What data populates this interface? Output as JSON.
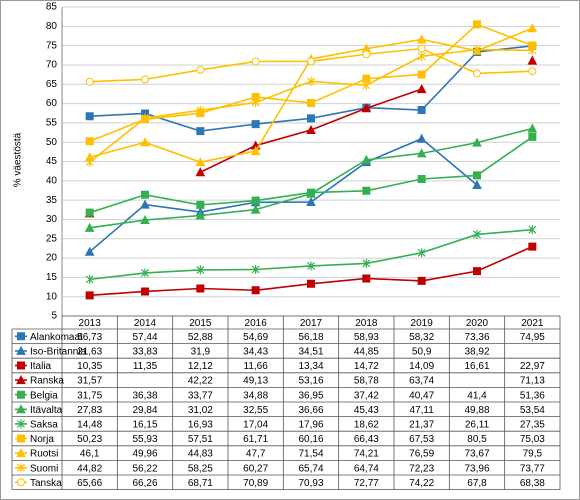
{
  "chart_data": {
    "type": "line",
    "y_label": "% väestöstä",
    "categories": [
      "2013",
      "2014",
      "2015",
      "2016",
      "2017",
      "2018",
      "2019",
      "2020",
      "2021"
    ],
    "ylim": [
      5,
      85
    ],
    "yticks": [
      5,
      10,
      15,
      20,
      25,
      30,
      35,
      40,
      45,
      50,
      55,
      60,
      65,
      70,
      75,
      80,
      85
    ],
    "grid": true,
    "series": [
      {
        "name": "Alankomaat",
        "color": "#2e75b6",
        "marker": "square",
        "values": [
          56.73,
          57.44,
          52.88,
          54.69,
          56.18,
          58.93,
          58.32,
          73.36,
          74.95
        ],
        "value_labels": [
          "56,73",
          "57,44",
          "52,88",
          "54,69",
          "56,18",
          "58,93",
          "58,32",
          "73,36",
          "74,95"
        ]
      },
      {
        "name": "Iso-Britannia",
        "color": "#2e75b6",
        "marker": "triangle",
        "values": [
          21.63,
          33.83,
          31.9,
          34.43,
          34.51,
          44.85,
          50.9,
          38.92,
          null
        ],
        "value_labels": [
          "21,63",
          "33,83",
          "31,9",
          "34,43",
          "34,51",
          "44,85",
          "50,9",
          "38,92",
          null
        ]
      },
      {
        "name": "Italia",
        "color": "#c00000",
        "marker": "square",
        "values": [
          10.35,
          11.35,
          12.12,
          11.66,
          13.34,
          14.72,
          14.09,
          16.61,
          22.97
        ],
        "value_labels": [
          "10,35",
          "11,35",
          "12,12",
          "11,66",
          "13,34",
          "14,72",
          "14,09",
          "16,61",
          "22,97"
        ]
      },
      {
        "name": "Ranska",
        "color": "#c00000",
        "marker": "triangle",
        "values": [
          31.57,
          null,
          42.22,
          49.13,
          53.16,
          58.78,
          63.74,
          null,
          71.13
        ],
        "value_labels": [
          "31,57",
          null,
          "42,22",
          "49,13",
          "53,16",
          "58,78",
          "63,74",
          null,
          "71,13"
        ]
      },
      {
        "name": "Belgia",
        "color": "#33b050",
        "marker": "square",
        "values": [
          31.75,
          36.38,
          33.77,
          34.88,
          36.95,
          37.42,
          40.47,
          41.4,
          51.36
        ],
        "value_labels": [
          "31,75",
          "36,38",
          "33,77",
          "34,88",
          "36,95",
          "37,42",
          "40,47",
          "41,4",
          "51,36"
        ]
      },
      {
        "name": "Itävalta",
        "color": "#33b050",
        "marker": "triangle",
        "values": [
          27.83,
          29.84,
          31.02,
          32.55,
          36.66,
          45.43,
          47.11,
          49.88,
          53.54
        ],
        "value_labels": [
          "27,83",
          "29,84",
          "31,02",
          "32,55",
          "36,66",
          "45,43",
          "47,11",
          "49,88",
          "53,54"
        ]
      },
      {
        "name": "Saksa",
        "color": "#33b050",
        "marker": "star",
        "values": [
          14.48,
          16.15,
          16.93,
          17.04,
          17.96,
          18.62,
          21.37,
          26.11,
          27.35
        ],
        "value_labels": [
          "14,48",
          "16,15",
          "16,93",
          "17,04",
          "17,96",
          "18,62",
          "21,37",
          "26,11",
          "27,35"
        ]
      },
      {
        "name": "Norja",
        "color": "#ffc000",
        "marker": "square",
        "values": [
          50.23,
          55.93,
          57.51,
          61.71,
          60.16,
          66.43,
          67.53,
          80.5,
          75.03
        ],
        "value_labels": [
          "50,23",
          "55,93",
          "57,51",
          "61,71",
          "60,16",
          "66,43",
          "67,53",
          "80,5",
          "75,03"
        ]
      },
      {
        "name": "Ruotsi",
        "color": "#ffc000",
        "marker": "triangle",
        "values": [
          46.1,
          49.96,
          44.83,
          47.7,
          71.54,
          74.21,
          76.59,
          73.67,
          79.5
        ],
        "value_labels": [
          "46,1",
          "49,96",
          "44,83",
          "47,7",
          "71,54",
          "74,21",
          "76,59",
          "73,67",
          "79,5"
        ]
      },
      {
        "name": "Suomi",
        "color": "#ffc000",
        "marker": "star",
        "values": [
          44.82,
          56.22,
          58.25,
          60.27,
          65.74,
          64.74,
          72.23,
          73.96,
          73.77
        ],
        "value_labels": [
          "44,82",
          "56,22",
          "58,25",
          "60,27",
          "65,74",
          "64,74",
          "72,23",
          "73,96",
          "73,77"
        ]
      },
      {
        "name": "Tanska",
        "color": "#ffc000",
        "marker": "circle",
        "values": [
          65.66,
          66.26,
          68.71,
          70.89,
          70.93,
          72.77,
          74.22,
          67.8,
          68.38
        ],
        "value_labels": [
          "65,66",
          "66,26",
          "68,71",
          "70,89",
          "70,93",
          "72,77",
          "74,22",
          "67,8",
          "68,38"
        ]
      }
    ]
  }
}
